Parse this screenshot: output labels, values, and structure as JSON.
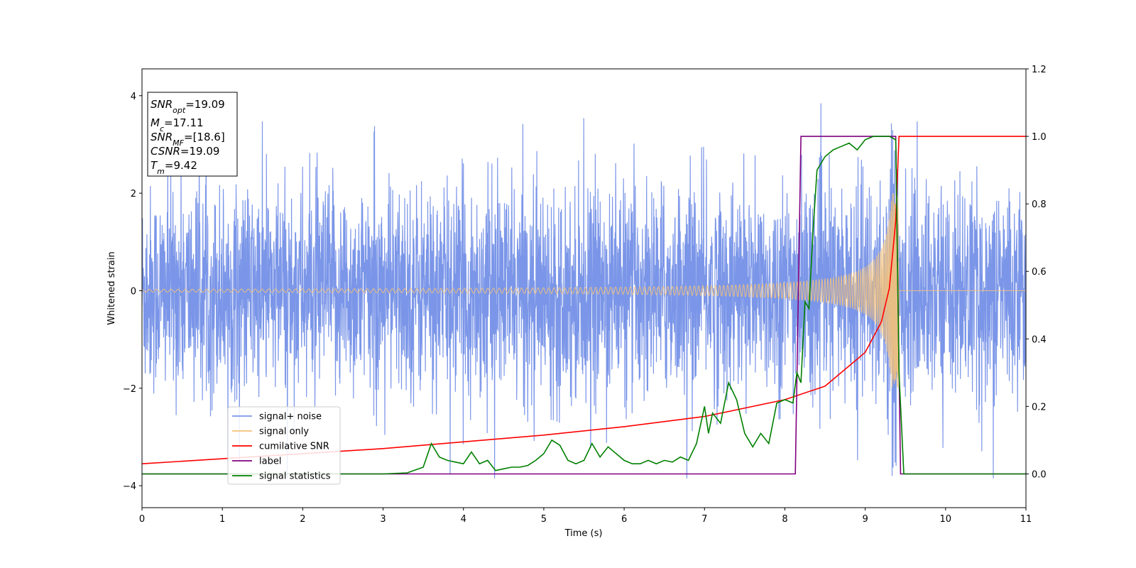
{
  "chart_data": {
    "type": "line",
    "xlabel": "Time (s)",
    "ylabel": "Whitened strain",
    "xlim": [
      0,
      11
    ],
    "ylim": [
      -4.45,
      4.55
    ],
    "y2lim": [
      -0.1,
      1.2
    ],
    "xticks": [
      "0",
      "1",
      "2",
      "3",
      "4",
      "5",
      "6",
      "7",
      "8",
      "9",
      "10",
      "11"
    ],
    "yticks": [
      "4",
      "2",
      "0",
      "−2",
      "−4"
    ],
    "y2ticks": [
      "1.2",
      "1.0",
      "0.8",
      "0.6",
      "0.4",
      "0.2",
      "0.0"
    ],
    "grid": false,
    "legend_position": "lower-left",
    "info_box": {
      "snr_opt": "19.09",
      "mc": "17.11",
      "snr_mf": "[18.6]",
      "csnr": "19.09",
      "tm": "9.42"
    },
    "series": [
      {
        "name": "signal+ noise",
        "axis": "left",
        "color": "#7b96e8",
        "description_values": "noise ~ N(0,1) amplitude, peaks near 4.2 at t≈9.2"
      },
      {
        "name": "signal only",
        "axis": "left",
        "color": "#f5c27a",
        "amplitude_at_start": 0.03,
        "peak_amplitude": 2.0,
        "merger_time": 9.42
      },
      {
        "name": "cumilative SNR",
        "axis": "right",
        "color": "#ff0000",
        "x": [
          0,
          1,
          2,
          3,
          4,
          5,
          6,
          7,
          8,
          8.5,
          9,
          9.2,
          9.3,
          9.38,
          9.42,
          11
        ],
        "y": [
          0.03,
          0.045,
          0.06,
          0.075,
          0.095,
          0.115,
          0.14,
          0.17,
          0.22,
          0.26,
          0.36,
          0.45,
          0.55,
          0.75,
          1.0,
          1.0
        ]
      },
      {
        "name": "label",
        "axis": "right",
        "color": "#800080",
        "x": [
          0,
          8.13,
          8.2,
          9.38,
          9.44,
          11
        ],
        "y": [
          0,
          0,
          1.0,
          1.0,
          0,
          0
        ]
      },
      {
        "name": "signal statistics",
        "axis": "right",
        "color": "#008000",
        "x": [
          0,
          1,
          2,
          2.5,
          3,
          3.3,
          3.5,
          3.6,
          3.7,
          3.8,
          3.9,
          4.0,
          4.1,
          4.2,
          4.3,
          4.4,
          4.5,
          4.6,
          4.7,
          4.8,
          4.9,
          5.0,
          5.1,
          5.2,
          5.3,
          5.4,
          5.5,
          5.6,
          5.7,
          5.8,
          5.9,
          6.0,
          6.1,
          6.2,
          6.3,
          6.4,
          6.5,
          6.6,
          6.7,
          6.8,
          6.9,
          7.0,
          7.05,
          7.1,
          7.2,
          7.3,
          7.4,
          7.5,
          7.6,
          7.7,
          7.8,
          7.9,
          8.0,
          8.1,
          8.15,
          8.2,
          8.25,
          8.3,
          8.35,
          8.4,
          8.5,
          8.6,
          8.7,
          8.8,
          8.9,
          9.0,
          9.1,
          9.2,
          9.3,
          9.38,
          9.42,
          9.48,
          10,
          11
        ],
        "y": [
          0.0,
          0.0,
          0.0,
          0.0,
          0.0,
          0.003,
          0.02,
          0.09,
          0.05,
          0.04,
          0.035,
          0.03,
          0.065,
          0.03,
          0.04,
          0.01,
          0.015,
          0.02,
          0.02,
          0.025,
          0.04,
          0.06,
          0.1,
          0.085,
          0.04,
          0.03,
          0.04,
          0.09,
          0.05,
          0.08,
          0.06,
          0.04,
          0.03,
          0.03,
          0.04,
          0.03,
          0.04,
          0.035,
          0.05,
          0.04,
          0.09,
          0.2,
          0.12,
          0.18,
          0.15,
          0.27,
          0.22,
          0.12,
          0.08,
          0.12,
          0.09,
          0.21,
          0.22,
          0.21,
          0.3,
          0.27,
          0.51,
          0.49,
          0.72,
          0.9,
          0.94,
          0.96,
          0.97,
          0.98,
          0.96,
          0.99,
          1.0,
          1.0,
          1.0,
          0.99,
          0.3,
          0.0,
          0.0,
          0.0
        ]
      }
    ]
  }
}
